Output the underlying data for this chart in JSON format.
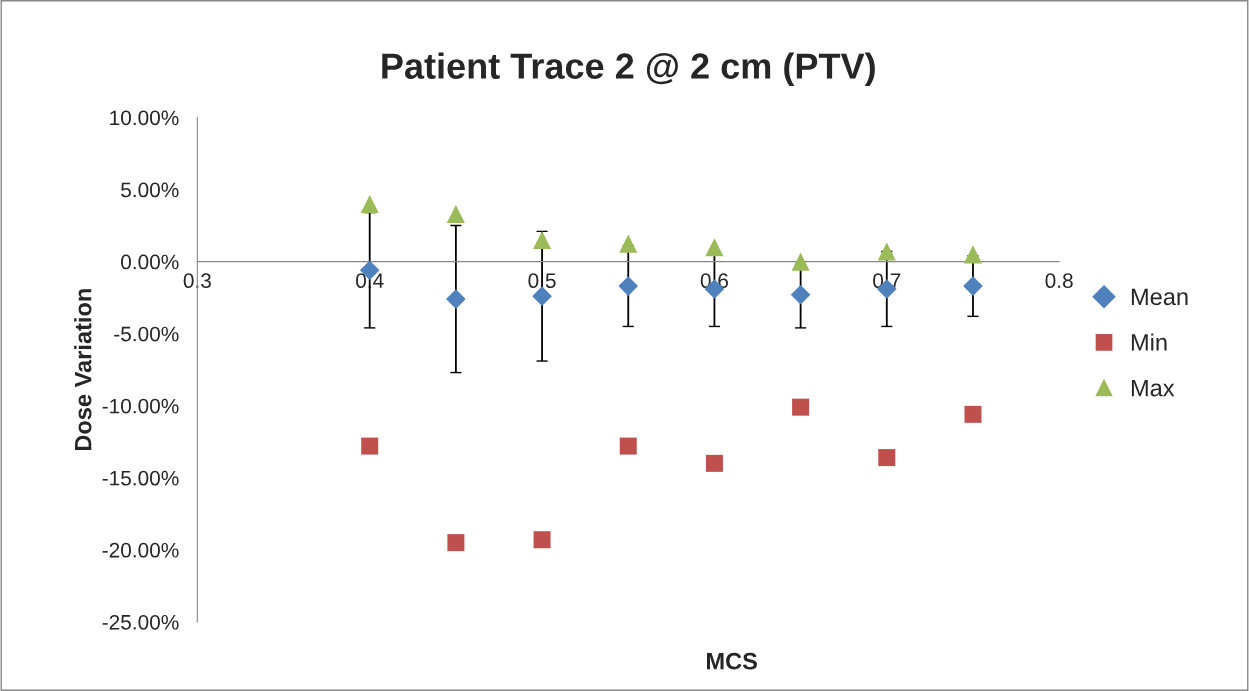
{
  "chart_data": {
    "type": "scatter",
    "title": "Patient Trace 2 @ 2 cm (PTV)",
    "xlabel": "MCS",
    "ylabel": "Dose Variation",
    "x": [
      0.4,
      0.45,
      0.5,
      0.55,
      0.6,
      0.65,
      0.7,
      0.75
    ],
    "series": [
      {
        "name": "Mean",
        "color": "#4f81bd",
        "marker": "diamond",
        "values": [
          -0.6,
          -2.6,
          -2.4,
          -1.7,
          -1.9,
          -2.3,
          -1.9,
          -1.7
        ],
        "errors": [
          4.0,
          5.1,
          4.5,
          2.8,
          2.6,
          2.3,
          2.6,
          2.1
        ]
      },
      {
        "name": "Min",
        "color": "#c0504d",
        "marker": "square",
        "values": [
          -12.8,
          -19.5,
          -19.3,
          -12.8,
          -14.0,
          -10.1,
          -13.6,
          -10.6
        ]
      },
      {
        "name": "Max",
        "color": "#9bbb59",
        "marker": "triangle",
        "values": [
          4.0,
          3.3,
          1.5,
          1.25,
          1.0,
          0.0,
          0.7,
          0.5
        ]
      }
    ],
    "xlim": [
      0.3,
      0.8
    ],
    "xticks": [
      0.3,
      0.4,
      0.5,
      0.6,
      0.7,
      0.8
    ],
    "ylim": [
      -25,
      10
    ],
    "yticks": [
      {
        "value": -25,
        "label": "-25.00%"
      },
      {
        "value": -20,
        "label": "-20.00%"
      },
      {
        "value": -15,
        "label": "-15.00%"
      },
      {
        "value": -10,
        "label": "-10.00%"
      },
      {
        "value": -5,
        "label": "-5.00%"
      },
      {
        "value": 0,
        "label": "0.00%"
      },
      {
        "value": 5,
        "label": "5.00%"
      },
      {
        "value": 10,
        "label": "10.00%"
      }
    ],
    "grid": false,
    "legend": "right"
  }
}
